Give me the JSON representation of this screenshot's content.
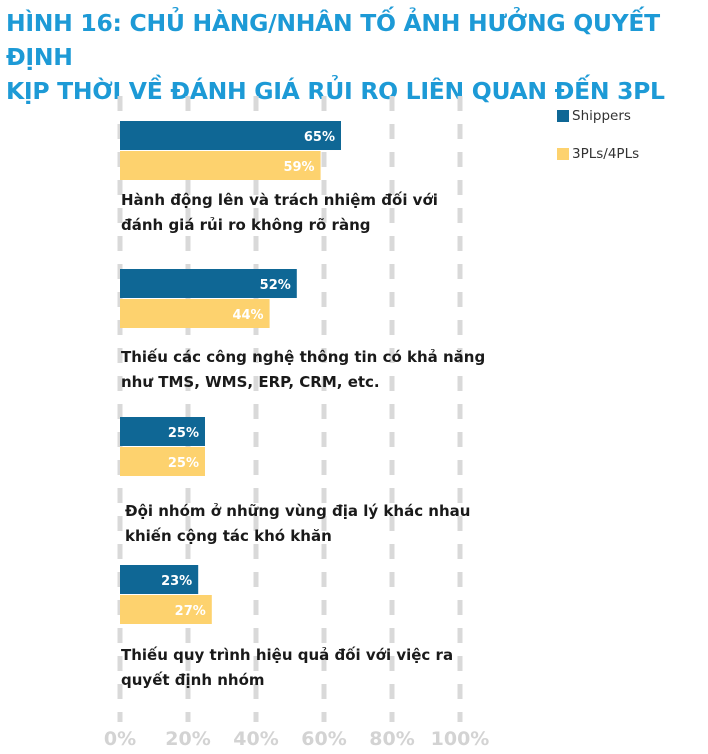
{
  "title_line1": "HÌNH 16: CHỦ HÀNG/NHÂN TỐ ẢNH HƯỞNG QUYẾT ĐỊNH",
  "title_line2": "KỊP THỜI VỀ ĐÁNH GIÁ RỦI RO LIÊN QUAN ĐẾN 3PL",
  "chart_data": {
    "type": "bar",
    "orientation": "horizontal",
    "categories": [
      [
        "Hành động lên và trách nhiệm đối với",
        "đánh giá rủi ro không rõ ràng"
      ],
      [
        "Thiếu các công nghệ thông tin có khả năng",
        "như TMS, WMS, ERP, CRM, etc."
      ],
      [
        "Đội nhóm ở những vùng địa lý khác nhau",
        "khiến cộng tác khó khăn"
      ],
      [
        "Thiếu quy trình hiệu quả đối với việc ra",
        "quyết định nhóm"
      ]
    ],
    "series": [
      {
        "name": "Shippers",
        "color": "#0f6795",
        "values": [
          65,
          52,
          25,
          23
        ],
        "labels": [
          "65%",
          "52%",
          "25%",
          "23%"
        ]
      },
      {
        "name": "3PLs/4PLs",
        "color": "#fdd26e",
        "values": [
          59,
          44,
          25,
          27
        ],
        "labels": [
          "59%",
          "44%",
          "25%",
          "27%"
        ]
      }
    ],
    "xlim": [
      0,
      100
    ],
    "xticks": [
      "0%",
      "20%",
      "40%",
      "60%",
      "80%",
      "100%"
    ],
    "grid": true,
    "grid_color": "#d9d9d9",
    "legend_position": "top-right"
  }
}
